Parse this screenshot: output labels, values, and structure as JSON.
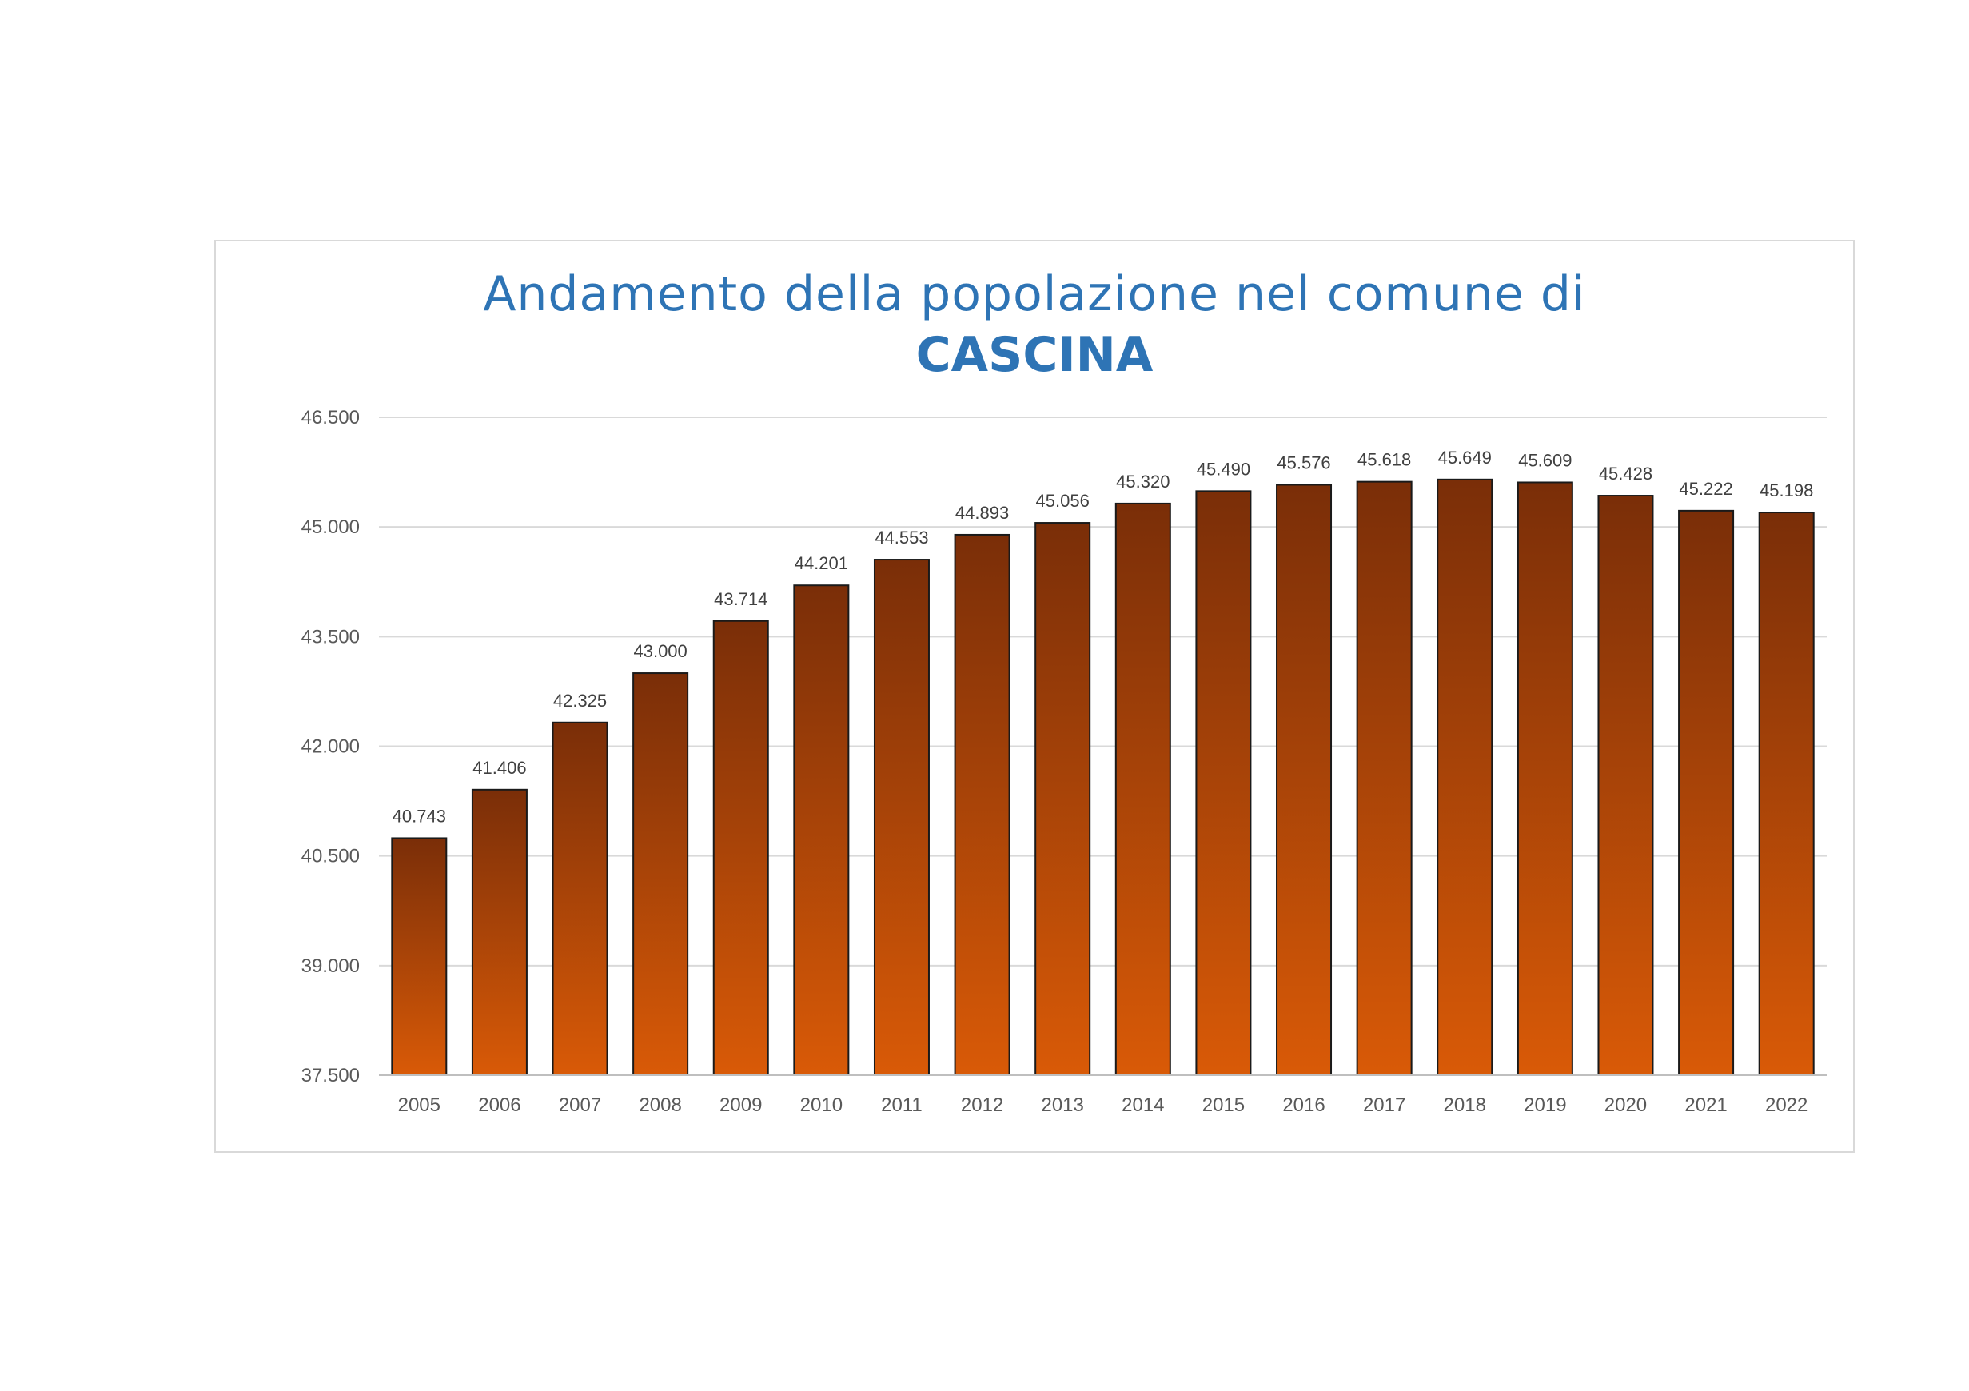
{
  "chart_data": {
    "type": "bar",
    "title": "Andamento della popolazione nel comune di",
    "subtitle": "CASCINA",
    "xlabel": "",
    "ylabel": "",
    "categories": [
      "2005",
      "2006",
      "2007",
      "2008",
      "2009",
      "2010",
      "2011",
      "2012",
      "2013",
      "2014",
      "2015",
      "2016",
      "2017",
      "2018",
      "2019",
      "2020",
      "2021",
      "2022"
    ],
    "values": [
      40743,
      41406,
      42325,
      43000,
      43714,
      44201,
      44553,
      44893,
      45056,
      45320,
      45490,
      45576,
      45618,
      45649,
      45609,
      45428,
      45222,
      45198
    ],
    "value_labels": [
      "40.743",
      "41.406",
      "42.325",
      "43.000",
      "43.714",
      "44.201",
      "44.553",
      "44.893",
      "45.056",
      "45.320",
      "45.490",
      "45.576",
      "45.618",
      "45.649",
      "45.609",
      "45.428",
      "45.222",
      "45.198"
    ],
    "ylim": [
      37500,
      46500
    ],
    "yticks": [
      37500,
      39000,
      40500,
      42000,
      43500,
      45000,
      46500
    ],
    "ytick_labels": [
      "37.500",
      "39.000",
      "40.500",
      "42.000",
      "43.500",
      "45.000",
      "46.500"
    ],
    "grid": true,
    "legend": "none",
    "colors": {
      "bar_top": "#7a2e08",
      "bar_bottom": "#d95a07",
      "bar_border": "#1a1a1a",
      "title": "#2e74b5",
      "grid": "#d9d9d9",
      "tick_text": "#595959",
      "label_text": "#404040"
    }
  }
}
